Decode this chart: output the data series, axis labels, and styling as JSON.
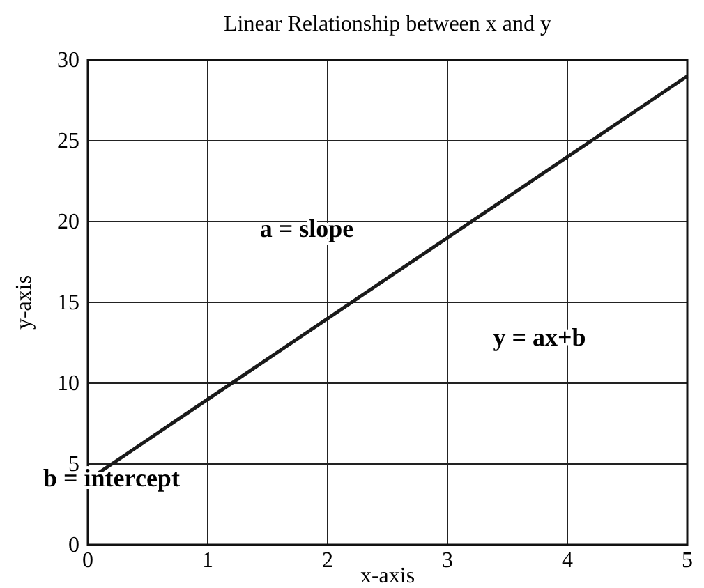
{
  "chart_data": {
    "type": "line",
    "title": "Linear Relationship between x and y",
    "xlabel": "x-axis",
    "ylabel": "y-axis",
    "x": [
      0,
      5
    ],
    "series": [
      {
        "color": "#1a1a1a",
        "values": [
          4,
          29
        ]
      }
    ],
    "xlim": [
      0,
      5
    ],
    "ylim": [
      0,
      30
    ],
    "xticks": [
      0,
      1,
      2,
      3,
      4,
      5
    ],
    "yticks": [
      0,
      5,
      10,
      15,
      20,
      25,
      30
    ],
    "grid": true,
    "marker": "none",
    "line_style": "solid",
    "annotations": [
      "a = slope",
      "y = ax+b",
      "b = intercept"
    ]
  }
}
